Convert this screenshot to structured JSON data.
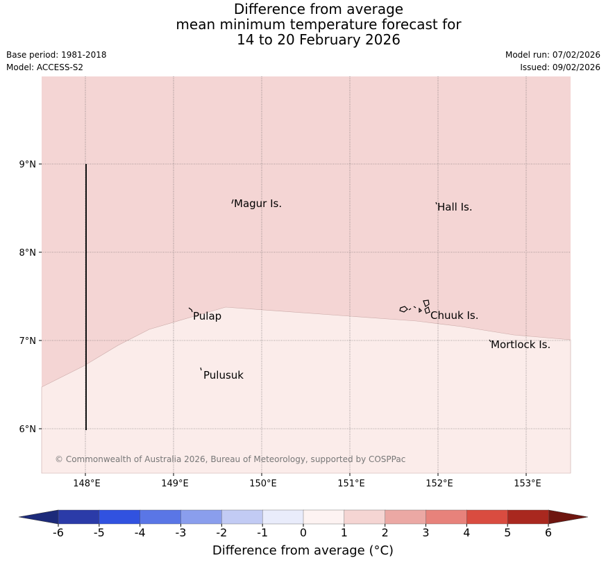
{
  "title": {
    "line1": "Difference from average",
    "line2": "mean minimum temperature forecast for",
    "line3": "14 to 20 February 2026"
  },
  "meta": {
    "base_period": "Base period: 1981-2018",
    "model": "Model: ACCESS-S2",
    "model_run": "Model run: 07/02/2026",
    "issued": "Issued: 09/02/2026"
  },
  "map": {
    "lat_labels": [
      "9°N",
      "8°N",
      "7°N",
      "6°N"
    ],
    "lon_labels": [
      "148°E",
      "149°E",
      "150°E",
      "151°E",
      "152°E",
      "153°E"
    ],
    "places": [
      "Magur Is.",
      "Hall Is.",
      "Pulap",
      "Chuuk Is.",
      "Mortlock Is.",
      "Pulusuk"
    ],
    "copyright": "© Commonwealth of Australia 2026, Bureau of Meteorology, supported by COSPPac",
    "zones": [
      {
        "name": "2-to-1 anomaly zone",
        "class": "1 to 2",
        "color": "#f4d5d4"
      },
      {
        "name": "0-to-1 anomaly zone",
        "class": "0 to 1",
        "color": "#fbecea"
      }
    ]
  },
  "colorbar": {
    "ticks": [
      "-6",
      "-5",
      "-4",
      "-3",
      "-2",
      "-1",
      "0",
      "1",
      "2",
      "3",
      "4",
      "5",
      "6"
    ],
    "colors": [
      "#2b3ba8",
      "#3152e0",
      "#5a76e6",
      "#8a9eed",
      "#c2cbf4",
      "#e9ecfb",
      "#fdf3f2",
      "#f5d5d3",
      "#eba8a4",
      "#e7827b",
      "#d94c40",
      "#a9281f"
    ],
    "under_color": "#1c2a7a",
    "over_color": "#6e150f",
    "label": "Difference from average (°C)"
  }
}
